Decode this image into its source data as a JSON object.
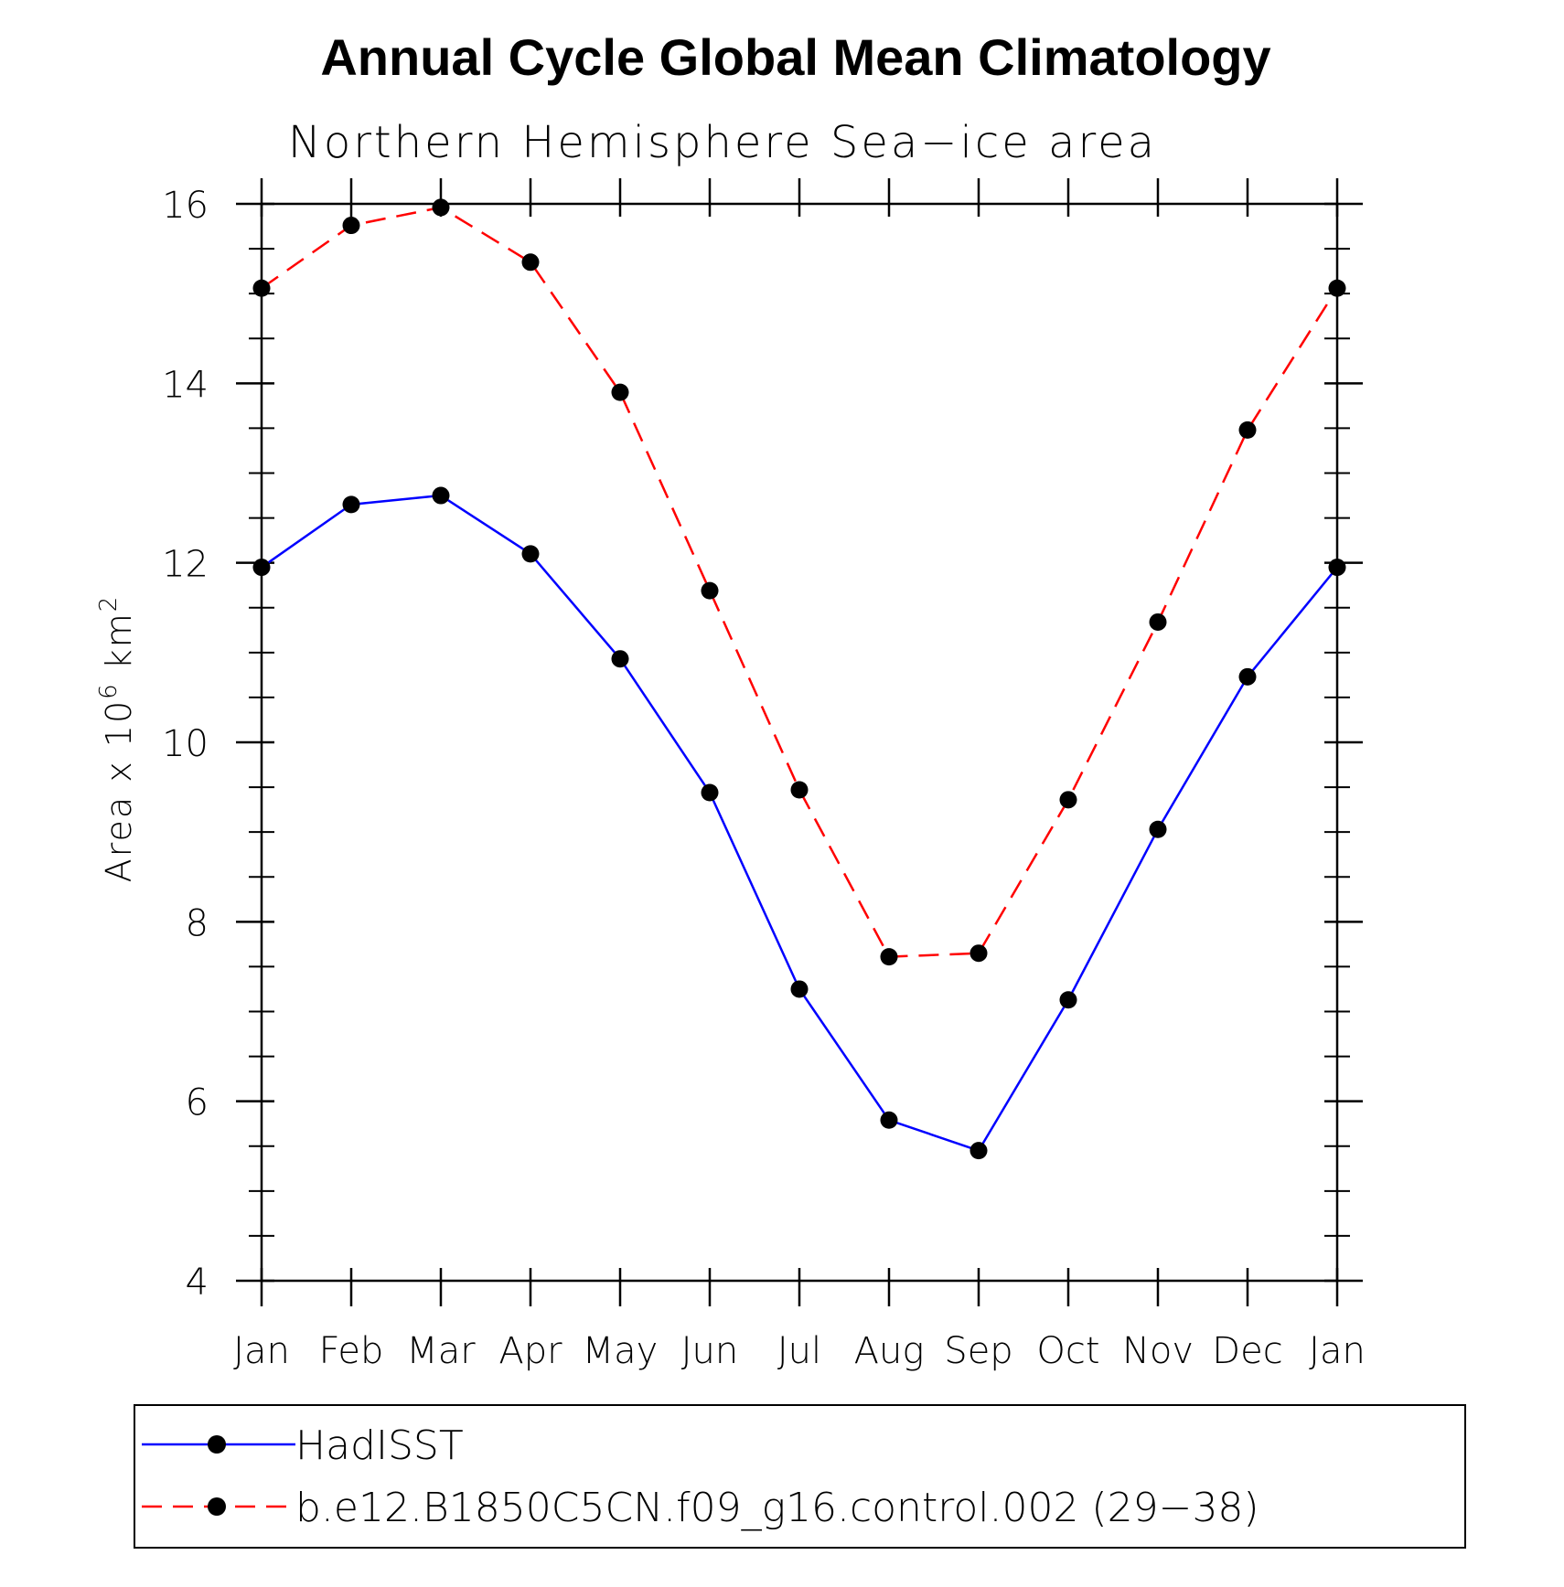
{
  "chart_data": {
    "type": "line",
    "title": "Annual Cycle Global Mean Climatology",
    "subtitle": "Northern Hemisphere Sea−ice area",
    "ylabel_main": "Area x 10",
    "ylabel_exp": "6",
    "ylabel_unit": " km",
    "ylabel_unit_exp": "2",
    "categories": [
      "Jan",
      "Feb",
      "Mar",
      "Apr",
      "May",
      "Jun",
      "Jul",
      "Aug",
      "Sep",
      "Oct",
      "Nov",
      "Dec",
      "Jan"
    ],
    "ylim": [
      4,
      16
    ],
    "yticks": [
      4,
      6,
      8,
      10,
      12,
      14,
      16
    ],
    "y_minor_step": 0.5,
    "series": [
      {
        "name": "HadISST",
        "color": "#0000ff",
        "dash": "solid",
        "values": [
          11.95,
          12.65,
          12.75,
          12.1,
          10.93,
          9.44,
          7.25,
          5.79,
          5.45,
          7.13,
          9.03,
          10.73,
          11.95
        ]
      },
      {
        "name": "b.e12.B1850C5CN.f09_g16.control.002 (29−38)",
        "color": "#ff0000",
        "dash": "dashed",
        "values": [
          15.06,
          15.76,
          15.96,
          15.35,
          13.9,
          11.69,
          9.47,
          7.61,
          7.65,
          9.36,
          11.34,
          13.48,
          15.06
        ]
      }
    ],
    "marker_color": "#000000",
    "legend_position": "bottom"
  }
}
